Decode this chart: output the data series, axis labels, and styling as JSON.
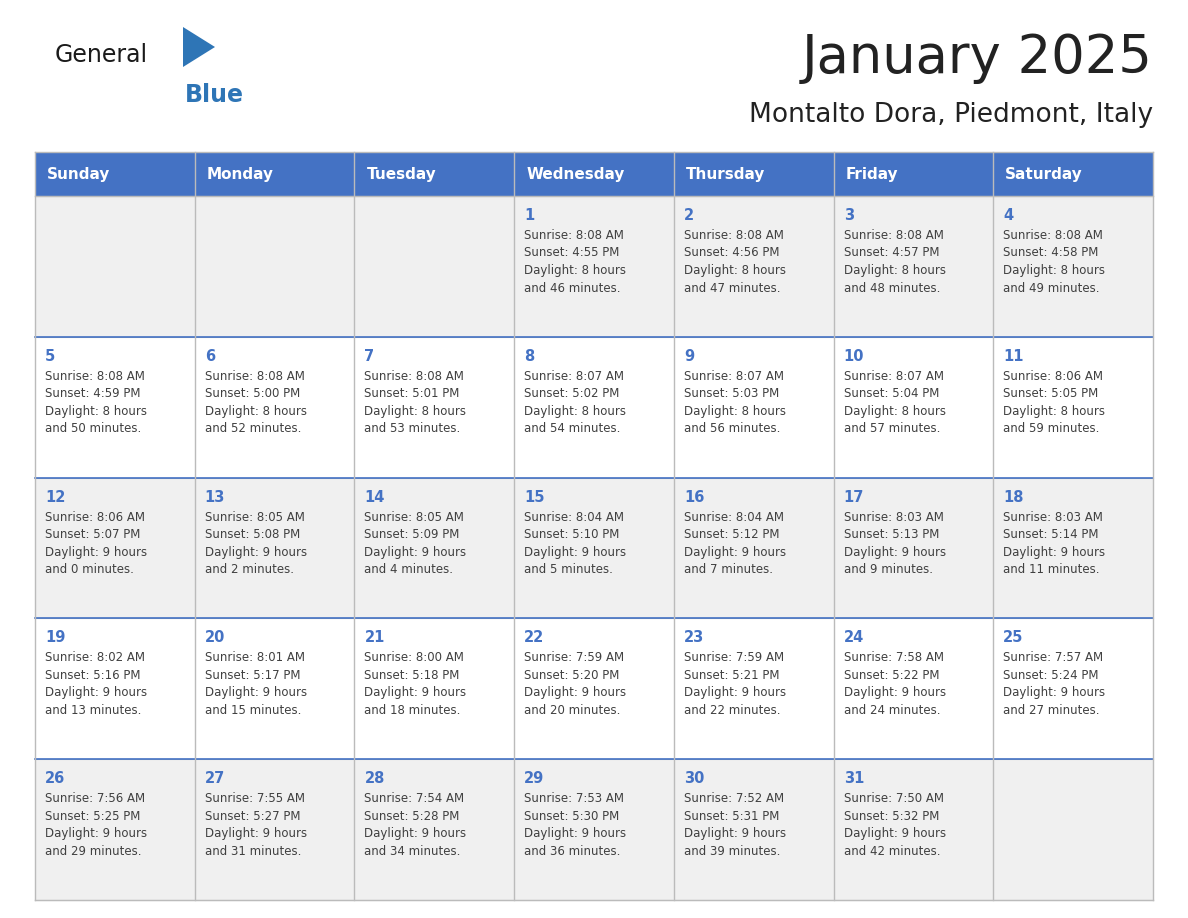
{
  "title": "January 2025",
  "subtitle": "Montalto Dora, Piedmont, Italy",
  "days_of_week": [
    "Sunday",
    "Monday",
    "Tuesday",
    "Wednesday",
    "Thursday",
    "Friday",
    "Saturday"
  ],
  "header_bg": "#4472C4",
  "header_text": "#FFFFFF",
  "cell_bg_white": "#FFFFFF",
  "cell_bg_gray": "#F0F0F0",
  "day_number_color": "#4472C4",
  "text_color": "#404040",
  "row_divider_color": "#4472C4",
  "title_color": "#222222",
  "logo_black": "#1A1A1A",
  "logo_blue": "#2E75B6",
  "triangle_blue": "#2E75B6",
  "weeks": [
    [
      {
        "day": null,
        "sunrise": null,
        "sunset": null,
        "daylight": null
      },
      {
        "day": null,
        "sunrise": null,
        "sunset": null,
        "daylight": null
      },
      {
        "day": null,
        "sunrise": null,
        "sunset": null,
        "daylight": null
      },
      {
        "day": 1,
        "sunrise": "8:08 AM",
        "sunset": "4:55 PM",
        "daylight": "8 hours\nand 46 minutes."
      },
      {
        "day": 2,
        "sunrise": "8:08 AM",
        "sunset": "4:56 PM",
        "daylight": "8 hours\nand 47 minutes."
      },
      {
        "day": 3,
        "sunrise": "8:08 AM",
        "sunset": "4:57 PM",
        "daylight": "8 hours\nand 48 minutes."
      },
      {
        "day": 4,
        "sunrise": "8:08 AM",
        "sunset": "4:58 PM",
        "daylight": "8 hours\nand 49 minutes."
      }
    ],
    [
      {
        "day": 5,
        "sunrise": "8:08 AM",
        "sunset": "4:59 PM",
        "daylight": "8 hours\nand 50 minutes."
      },
      {
        "day": 6,
        "sunrise": "8:08 AM",
        "sunset": "5:00 PM",
        "daylight": "8 hours\nand 52 minutes."
      },
      {
        "day": 7,
        "sunrise": "8:08 AM",
        "sunset": "5:01 PM",
        "daylight": "8 hours\nand 53 minutes."
      },
      {
        "day": 8,
        "sunrise": "8:07 AM",
        "sunset": "5:02 PM",
        "daylight": "8 hours\nand 54 minutes."
      },
      {
        "day": 9,
        "sunrise": "8:07 AM",
        "sunset": "5:03 PM",
        "daylight": "8 hours\nand 56 minutes."
      },
      {
        "day": 10,
        "sunrise": "8:07 AM",
        "sunset": "5:04 PM",
        "daylight": "8 hours\nand 57 minutes."
      },
      {
        "day": 11,
        "sunrise": "8:06 AM",
        "sunset": "5:05 PM",
        "daylight": "8 hours\nand 59 minutes."
      }
    ],
    [
      {
        "day": 12,
        "sunrise": "8:06 AM",
        "sunset": "5:07 PM",
        "daylight": "9 hours\nand 0 minutes."
      },
      {
        "day": 13,
        "sunrise": "8:05 AM",
        "sunset": "5:08 PM",
        "daylight": "9 hours\nand 2 minutes."
      },
      {
        "day": 14,
        "sunrise": "8:05 AM",
        "sunset": "5:09 PM",
        "daylight": "9 hours\nand 4 minutes."
      },
      {
        "day": 15,
        "sunrise": "8:04 AM",
        "sunset": "5:10 PM",
        "daylight": "9 hours\nand 5 minutes."
      },
      {
        "day": 16,
        "sunrise": "8:04 AM",
        "sunset": "5:12 PM",
        "daylight": "9 hours\nand 7 minutes."
      },
      {
        "day": 17,
        "sunrise": "8:03 AM",
        "sunset": "5:13 PM",
        "daylight": "9 hours\nand 9 minutes."
      },
      {
        "day": 18,
        "sunrise": "8:03 AM",
        "sunset": "5:14 PM",
        "daylight": "9 hours\nand 11 minutes."
      }
    ],
    [
      {
        "day": 19,
        "sunrise": "8:02 AM",
        "sunset": "5:16 PM",
        "daylight": "9 hours\nand 13 minutes."
      },
      {
        "day": 20,
        "sunrise": "8:01 AM",
        "sunset": "5:17 PM",
        "daylight": "9 hours\nand 15 minutes."
      },
      {
        "day": 21,
        "sunrise": "8:00 AM",
        "sunset": "5:18 PM",
        "daylight": "9 hours\nand 18 minutes."
      },
      {
        "day": 22,
        "sunrise": "7:59 AM",
        "sunset": "5:20 PM",
        "daylight": "9 hours\nand 20 minutes."
      },
      {
        "day": 23,
        "sunrise": "7:59 AM",
        "sunset": "5:21 PM",
        "daylight": "9 hours\nand 22 minutes."
      },
      {
        "day": 24,
        "sunrise": "7:58 AM",
        "sunset": "5:22 PM",
        "daylight": "9 hours\nand 24 minutes."
      },
      {
        "day": 25,
        "sunrise": "7:57 AM",
        "sunset": "5:24 PM",
        "daylight": "9 hours\nand 27 minutes."
      }
    ],
    [
      {
        "day": 26,
        "sunrise": "7:56 AM",
        "sunset": "5:25 PM",
        "daylight": "9 hours\nand 29 minutes."
      },
      {
        "day": 27,
        "sunrise": "7:55 AM",
        "sunset": "5:27 PM",
        "daylight": "9 hours\nand 31 minutes."
      },
      {
        "day": 28,
        "sunrise": "7:54 AM",
        "sunset": "5:28 PM",
        "daylight": "9 hours\nand 34 minutes."
      },
      {
        "day": 29,
        "sunrise": "7:53 AM",
        "sunset": "5:30 PM",
        "daylight": "9 hours\nand 36 minutes."
      },
      {
        "day": 30,
        "sunrise": "7:52 AM",
        "sunset": "5:31 PM",
        "daylight": "9 hours\nand 39 minutes."
      },
      {
        "day": 31,
        "sunrise": "7:50 AM",
        "sunset": "5:32 PM",
        "daylight": "9 hours\nand 42 minutes."
      },
      {
        "day": null,
        "sunrise": null,
        "sunset": null,
        "daylight": null
      }
    ]
  ]
}
